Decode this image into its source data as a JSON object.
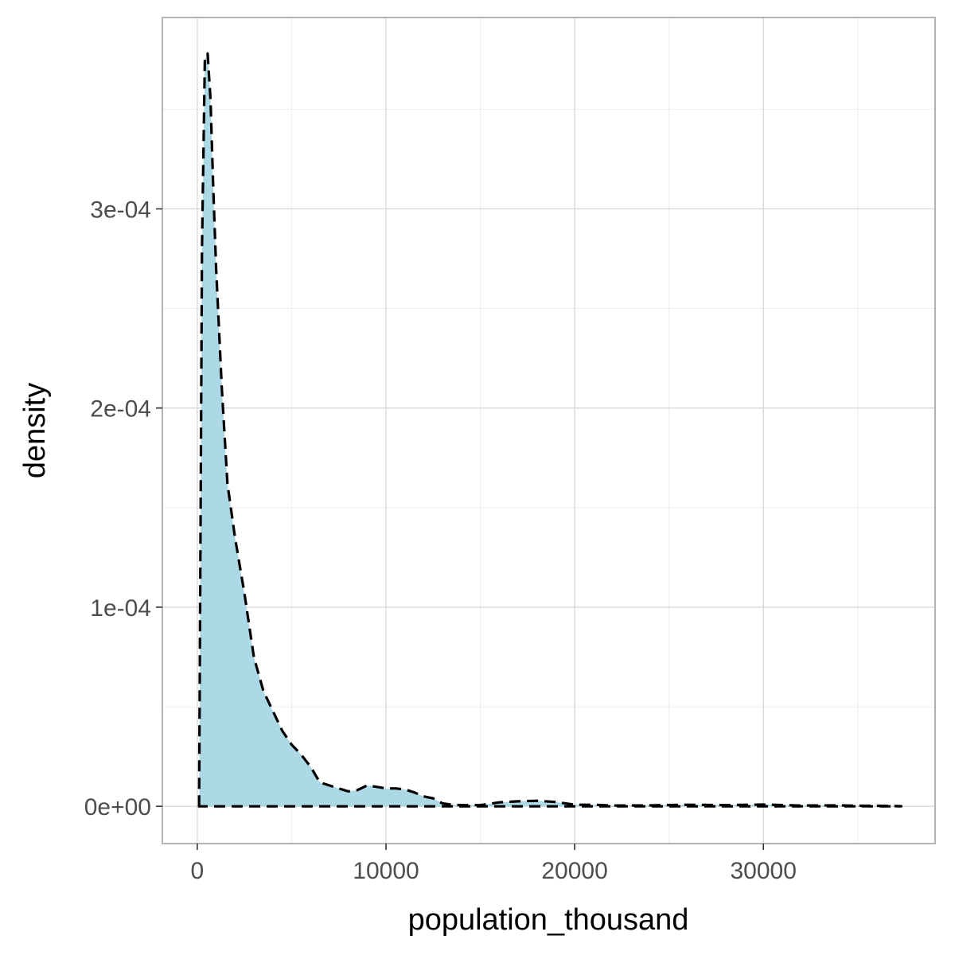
{
  "chart_data": {
    "type": "area",
    "title": "",
    "xlabel": "population_thousand",
    "ylabel": "density",
    "xlim": [
      -1850,
      39100
    ],
    "ylim": [
      -1.87e-05,
      0.0003961
    ],
    "x_ticks": [
      0,
      10000,
      20000,
      30000
    ],
    "x_tick_labels": [
      "0",
      "10000",
      "20000",
      "30000"
    ],
    "y_ticks": [
      0,
      0.0001,
      0.0002,
      0.0003
    ],
    "y_tick_labels": [
      "0e+00",
      "1e-04",
      "2e-04",
      "3e-04"
    ],
    "grid": true,
    "legend": "none",
    "fill_color": "#add8e6",
    "line_color": "#000000",
    "line_style": "dashed",
    "series": [
      {
        "x": [
          100,
          250,
          400,
          550,
          700,
          850,
          1000,
          1300,
          1600,
          2000,
          2500,
          3000,
          3500,
          4000,
          4500,
          5000,
          5500,
          6000,
          6500,
          7000,
          7500,
          8000,
          8500,
          9000,
          9500,
          10000,
          10500,
          11000,
          11500,
          12000,
          12500,
          13000,
          13500,
          14000,
          15000,
          16000,
          17000,
          18000,
          19000,
          20000,
          21000,
          22000,
          24000,
          26000,
          28000,
          30000,
          32000,
          34000,
          35000,
          36000,
          37300
        ],
        "y": [
          1.5e-06,
          0.00028,
          0.000375,
          0.000378,
          0.000355,
          0.00031,
          0.00027,
          0.00021,
          0.000162,
          0.000135,
          0.000107,
          7.5e-05,
          5.8e-05,
          4.8e-05,
          3.8e-05,
          3.1e-05,
          2.6e-05,
          2e-05,
          1.2e-05,
          1.05e-05,
          9e-06,
          7.5e-06,
          8.2e-06,
          1.05e-05,
          9.8e-06,
          9e-06,
          9e-06,
          8.5e-06,
          7e-06,
          5e-06,
          4e-06,
          1.5e-06,
          8e-07,
          6e-07,
          6e-07,
          2e-06,
          2.5e-06,
          2.8e-06,
          2.2e-06,
          8e-07,
          8e-07,
          4e-07,
          5e-07,
          8e-07,
          6e-07,
          9e-07,
          4e-07,
          5e-07,
          3e-07,
          3e-07,
          1e-07
        ]
      }
    ]
  }
}
